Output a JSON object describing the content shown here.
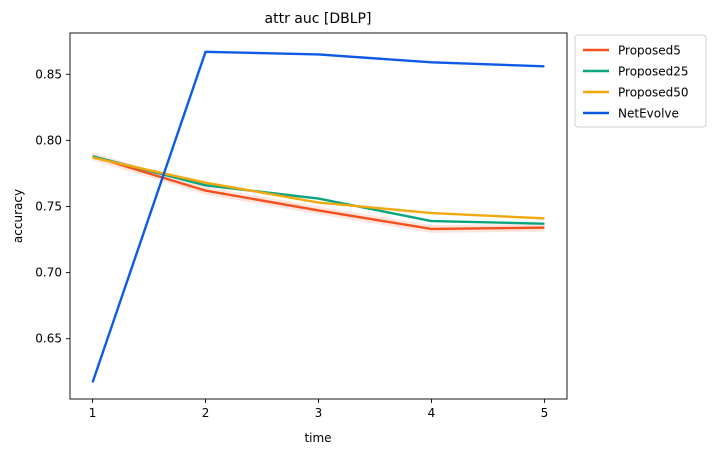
{
  "chart_data": {
    "type": "line",
    "title": "attr auc [DBLP]",
    "xlabel": "time",
    "ylabel": "accuracy",
    "x": [
      1,
      2,
      3,
      4,
      5
    ],
    "x_ticks": [
      "1",
      "2",
      "3",
      "4",
      "5"
    ],
    "y_ticks": [
      "0.65",
      "0.70",
      "0.75",
      "0.80",
      "0.85"
    ],
    "y_tick_values": [
      0.65,
      0.7,
      0.75,
      0.8,
      0.85
    ],
    "xlim": [
      0.8,
      5.2
    ],
    "ylim": [
      0.6044,
      0.8812
    ],
    "grid": false,
    "legend_position": "outside-top-right",
    "series": [
      {
        "name": "Proposed5",
        "color": "#f4511e",
        "values": [
          0.788,
          0.762,
          0.747,
          0.733,
          0.734
        ],
        "band": [
          0.003,
          0.003,
          0.003,
          0.003,
          0.003
        ]
      },
      {
        "name": "Proposed25",
        "color": "#0aa57f",
        "values": [
          0.788,
          0.766,
          0.756,
          0.739,
          0.737
        ],
        "band": [
          0.0,
          0.0,
          0.0,
          0.0,
          0.0
        ]
      },
      {
        "name": "Proposed50",
        "color": "#f2a90f",
        "values": [
          0.787,
          0.768,
          0.753,
          0.745,
          0.741
        ],
        "band": [
          0.0,
          0.0,
          0.0,
          0.0,
          0.0
        ]
      },
      {
        "name": "NetEvolve",
        "color": "#0d5ae5",
        "values": [
          0.617,
          0.867,
          0.865,
          0.859,
          0.856
        ],
        "band": [
          0.0,
          0.0,
          0.0,
          0.0,
          0.0
        ]
      }
    ]
  }
}
